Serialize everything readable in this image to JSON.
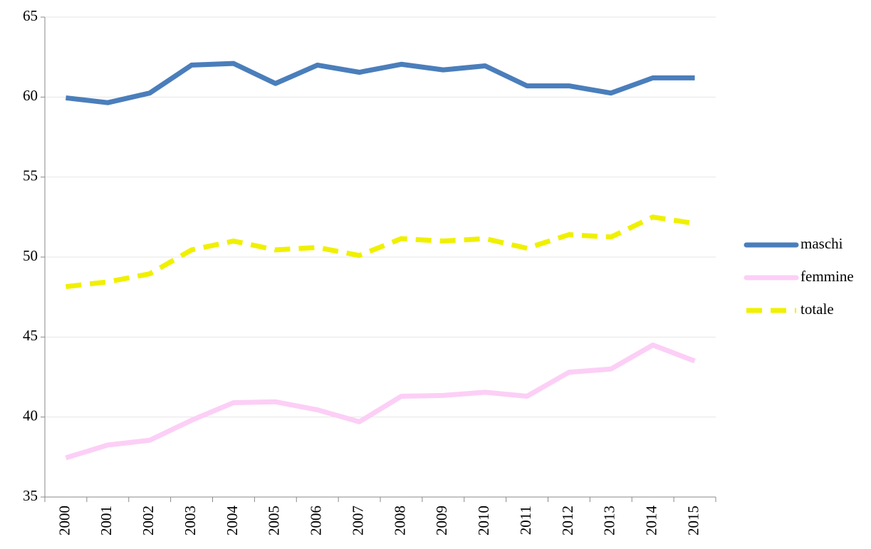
{
  "chart_data": {
    "type": "line",
    "categories": [
      "2000",
      "2001",
      "2002",
      "2003",
      "2004",
      "2005",
      "2006",
      "2007",
      "2008",
      "2009",
      "2010",
      "2011",
      "2012",
      "2013",
      "2014",
      "2015"
    ],
    "series": [
      {
        "name": "maschi",
        "color": "#4a7ebb",
        "dashed": false,
        "values": [
          59.95,
          59.65,
          60.25,
          62.0,
          62.1,
          60.85,
          62.0,
          61.55,
          62.05,
          61.7,
          61.95,
          60.7,
          60.7,
          60.25,
          61.2,
          61.2
        ]
      },
      {
        "name": "femmine",
        "color": "#fccff6",
        "dashed": false,
        "values": [
          37.45,
          38.25,
          38.55,
          39.8,
          40.9,
          40.95,
          40.45,
          39.7,
          41.3,
          41.35,
          41.55,
          41.3,
          42.8,
          43.0,
          44.5,
          43.5
        ]
      },
      {
        "name": "totale",
        "color": "#f0f000",
        "dashed": true,
        "values": [
          48.15,
          48.45,
          48.95,
          50.45,
          51.0,
          50.45,
          50.6,
          50.1,
          51.15,
          51.0,
          51.15,
          50.55,
          51.4,
          51.25,
          52.5,
          52.1
        ]
      }
    ],
    "ylim": [
      35,
      65
    ],
    "yticks": [
      35,
      40,
      45,
      50,
      55,
      60,
      65
    ],
    "grid": true,
    "legend": "right"
  }
}
